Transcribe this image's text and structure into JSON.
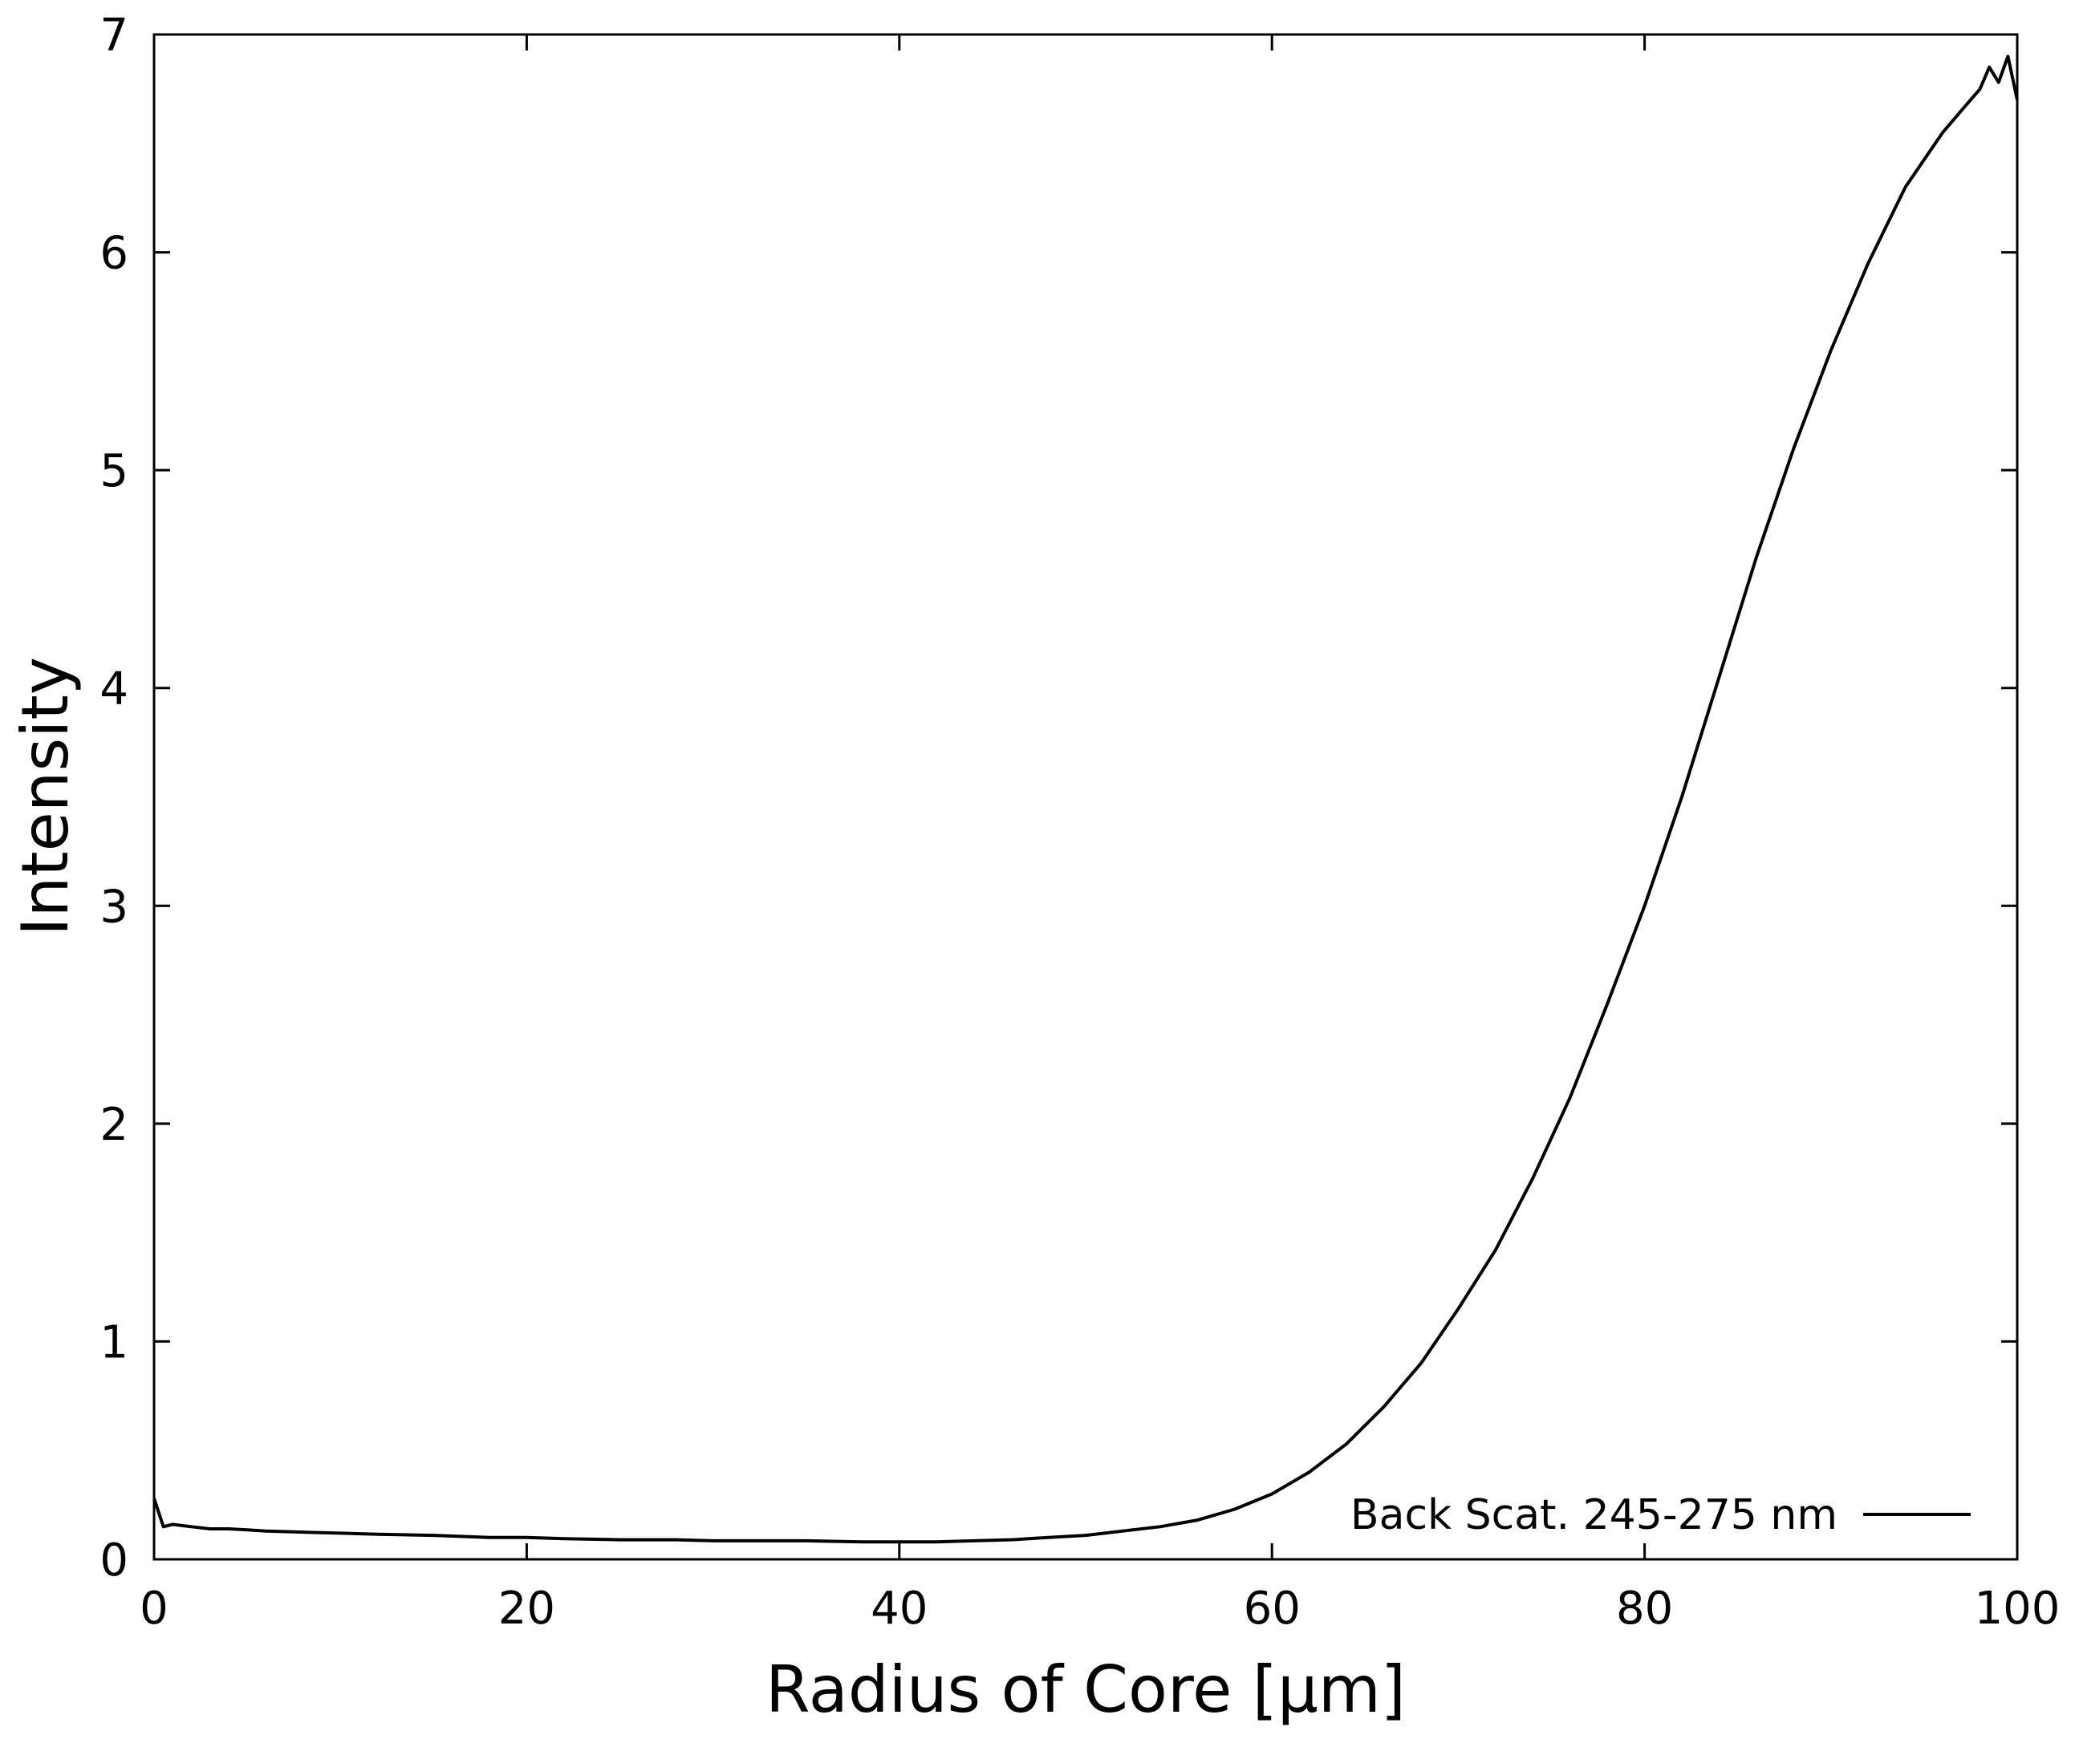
{
  "chart_data": {
    "type": "line",
    "title": "",
    "xlabel": "Radius of Core [μm]",
    "ylabel": "Intensity",
    "xlim": [
      0,
      100
    ],
    "ylim": [
      0,
      7
    ],
    "xticks": [
      "0",
      "20",
      "40",
      "60",
      "80",
      "100"
    ],
    "yticks": [
      "0",
      "1",
      "2",
      "3",
      "4",
      "5",
      "6",
      "7"
    ],
    "grid": false,
    "legend": {
      "position": "bottom-right",
      "entries": [
        "Back Scat. 245-275 nm"
      ]
    },
    "series": [
      {
        "name": "Back Scat. 245-275 nm",
        "color": "#000000",
        "x": [
          0,
          0.5,
          1,
          2,
          3,
          4,
          5,
          6,
          8,
          10,
          12,
          15,
          18,
          20,
          22,
          25,
          28,
          30,
          32,
          35,
          38,
          40,
          42,
          44,
          46,
          48,
          50,
          52,
          54,
          56,
          58,
          60,
          62,
          64,
          66,
          68,
          70,
          72,
          74,
          76,
          78,
          80,
          82,
          84,
          86,
          88,
          90,
          92,
          94,
          96,
          97,
          98,
          98.5,
          99,
          99.5,
          100
        ],
        "y": [
          0.28,
          0.15,
          0.16,
          0.15,
          0.14,
          0.14,
          0.135,
          0.13,
          0.125,
          0.12,
          0.115,
          0.11,
          0.1,
          0.1,
          0.095,
          0.09,
          0.09,
          0.085,
          0.085,
          0.085,
          0.08,
          0.08,
          0.08,
          0.085,
          0.09,
          0.1,
          0.11,
          0.13,
          0.15,
          0.18,
          0.23,
          0.3,
          0.4,
          0.53,
          0.7,
          0.9,
          1.15,
          1.42,
          1.75,
          2.12,
          2.55,
          3.0,
          3.5,
          4.05,
          4.6,
          5.1,
          5.55,
          5.95,
          6.3,
          6.55,
          6.65,
          6.75,
          6.85,
          6.78,
          6.9,
          6.7
        ]
      }
    ]
  }
}
